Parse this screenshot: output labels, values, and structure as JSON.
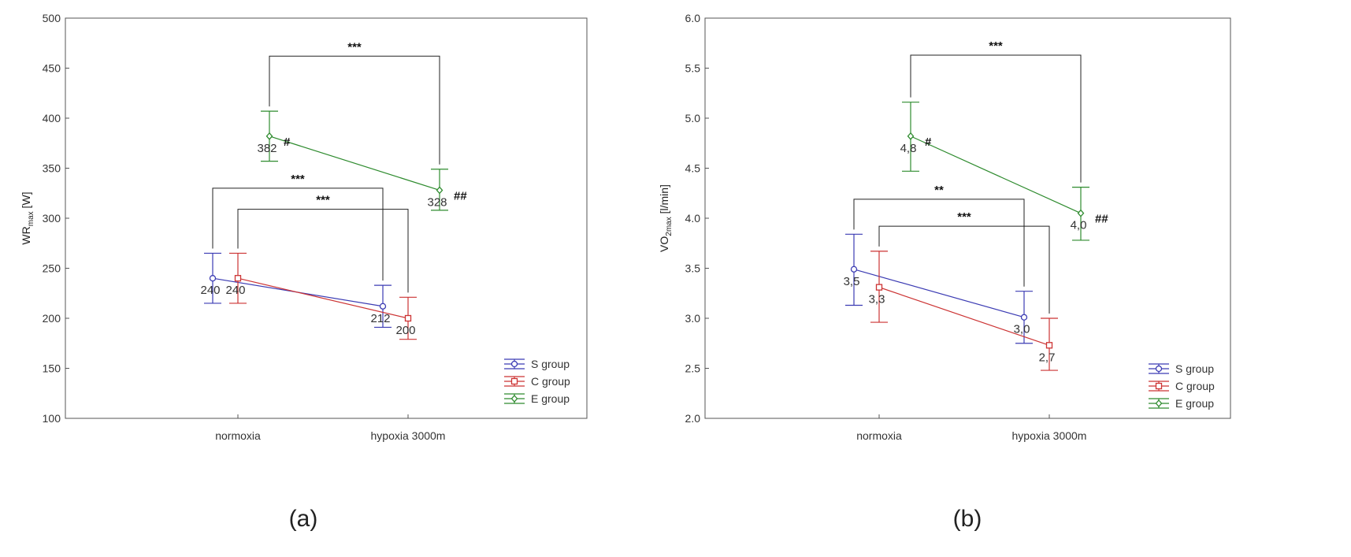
{
  "chart_data": [
    {
      "type": "line",
      "panel_label": "(a)",
      "title": "",
      "ylabel_main": "WR",
      "ylabel_sub": "max",
      "ylabel_unit": " [W]",
      "xlabel": "",
      "ylim": [
        100,
        500
      ],
      "yticks": [
        "100",
        "150",
        "200",
        "250",
        "300",
        "350",
        "400",
        "450",
        "500"
      ],
      "categories": [
        "normoxia",
        "hypoxia 3000m"
      ],
      "series": [
        {
          "name": "S group",
          "color": "#3b3bb3",
          "marker": "circle",
          "values": [
            240,
            212
          ],
          "err_upper": [
            265,
            233
          ],
          "err_lower": [
            215,
            191
          ],
          "labels": [
            "240",
            "212"
          ]
        },
        {
          "name": "C group",
          "color": "#cc3333",
          "marker": "square",
          "values": [
            240,
            200
          ],
          "err_upper": [
            265,
            221
          ],
          "err_lower": [
            215,
            179
          ],
          "labels": [
            "240",
            "200"
          ]
        },
        {
          "name": "E group",
          "color": "#2e8b2e",
          "marker": "diamond",
          "values": [
            382,
            328
          ],
          "err_upper": [
            407,
            349
          ],
          "err_lower": [
            357,
            308
          ],
          "labels": [
            "382",
            "328"
          ],
          "marks": [
            "#",
            "##"
          ]
        }
      ],
      "significance": [
        {
          "series": "E group",
          "label": "***",
          "y": 462
        },
        {
          "series": "S group",
          "label": "***",
          "y": 330
        },
        {
          "series": "C group",
          "label": "***",
          "y": 309
        }
      ],
      "legend_position": "bottom-right",
      "grid": false
    },
    {
      "type": "line",
      "panel_label": "(b)",
      "title": "",
      "ylabel_main": "VO",
      "ylabel_sub": "2max",
      "ylabel_unit": " [l/min]",
      "xlabel": "",
      "ylim": [
        2.0,
        6.0
      ],
      "yticks": [
        "2.0",
        "2.5",
        "3.0",
        "3.5",
        "4.0",
        "4.5",
        "5.0",
        "5.5",
        "6.0"
      ],
      "categories": [
        "normoxia",
        "hypoxia 3000m"
      ],
      "series": [
        {
          "name": "S group",
          "color": "#3b3bb3",
          "marker": "circle",
          "values": [
            3.49,
            3.01
          ],
          "err_upper": [
            3.84,
            3.27
          ],
          "err_lower": [
            3.13,
            2.75
          ],
          "labels": [
            "3,5",
            "3,0"
          ]
        },
        {
          "name": "C group",
          "color": "#cc3333",
          "marker": "square",
          "values": [
            3.31,
            2.73
          ],
          "err_upper": [
            3.67,
            3.0
          ],
          "err_lower": [
            2.96,
            2.48
          ],
          "labels": [
            "3,3",
            "2,7"
          ]
        },
        {
          "name": "E group",
          "color": "#2e8b2e",
          "marker": "diamond",
          "values": [
            4.82,
            4.05
          ],
          "err_upper": [
            5.16,
            4.31
          ],
          "err_lower": [
            4.47,
            3.78
          ],
          "labels": [
            "4,8",
            "4,0"
          ],
          "marks": [
            "#",
            "##"
          ]
        }
      ],
      "significance": [
        {
          "series": "E group",
          "label": "***",
          "y": 5.63
        },
        {
          "series": "S group",
          "label": "**",
          "y": 4.19
        },
        {
          "series": "C group",
          "label": "***",
          "y": 3.92
        }
      ],
      "legend_position": "bottom-right",
      "grid": false
    }
  ]
}
